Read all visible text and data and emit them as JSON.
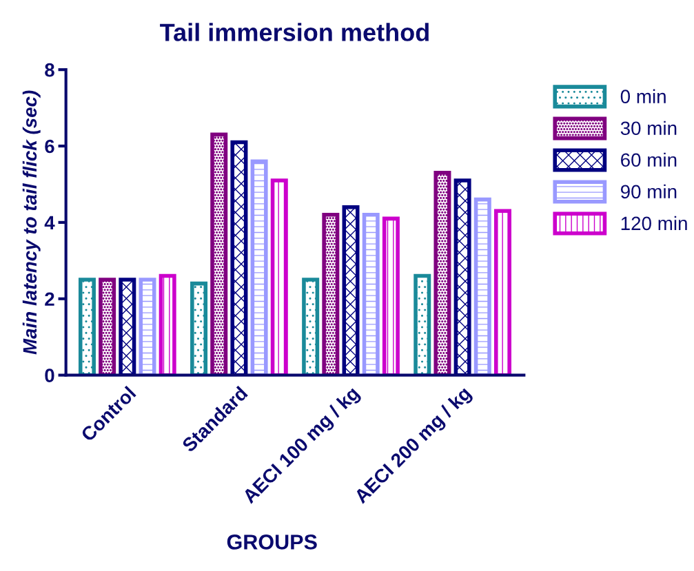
{
  "chart_data": {
    "type": "bar",
    "title": "Tail immersion method",
    "xlabel": "GROUPS",
    "ylabel": "Main latency to tail flick (sec)",
    "categories": [
      "Control",
      "Standard",
      "AECI 100 mg / kg",
      "AECI 200 mg / kg"
    ],
    "series": [
      {
        "name": "0 min",
        "color": "#1a8a9a",
        "values": [
          2.5,
          2.4,
          2.5,
          2.6
        ]
      },
      {
        "name": "30 min",
        "color": "#800080",
        "values": [
          2.5,
          6.3,
          4.2,
          5.3
        ]
      },
      {
        "name": "60 min",
        "color": "#000080",
        "values": [
          2.5,
          6.1,
          4.4,
          5.1
        ]
      },
      {
        "name": "90 min",
        "color": "#9999ff",
        "values": [
          2.5,
          5.6,
          4.2,
          4.6
        ]
      },
      {
        "name": "120 min",
        "color": "#cc00cc",
        "values": [
          2.6,
          5.1,
          4.1,
          4.3
        ]
      }
    ],
    "ylim": [
      0,
      8
    ],
    "yticks": [
      0,
      2,
      4,
      6,
      8
    ],
    "legend": "top right",
    "grid": false
  }
}
